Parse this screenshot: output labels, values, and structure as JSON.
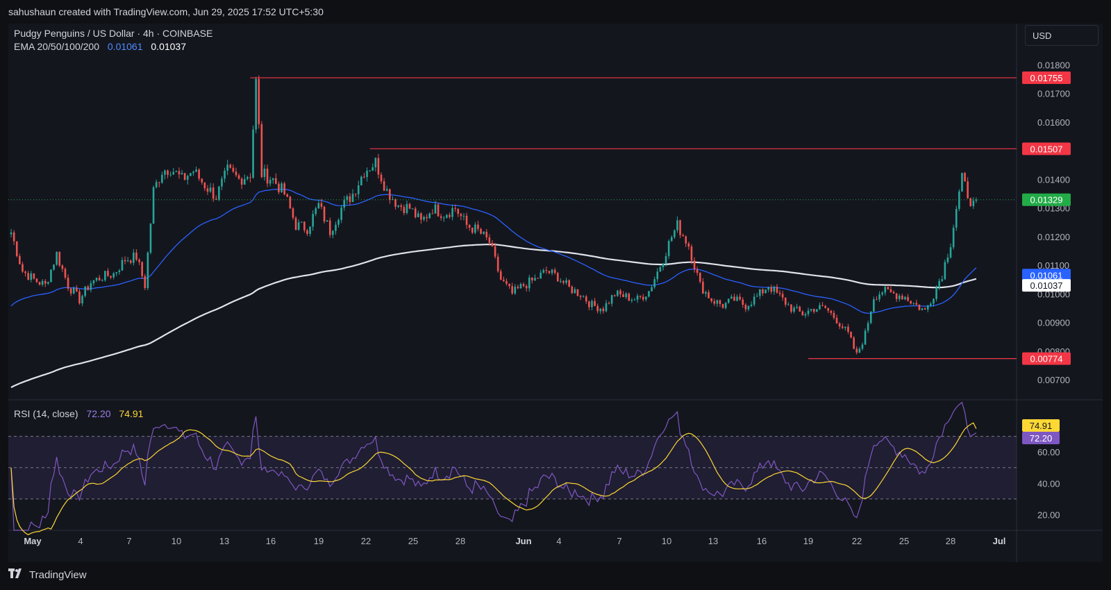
{
  "header": {
    "text": "sahushaun created with TradingView.com, Jun 29, 2025 17:52 UTC+5:30"
  },
  "legend": {
    "title": "Pudgy Penguins / US Dollar · 4h · COINBASE",
    "ema_label": "EMA 20/50/100/200",
    "ema_value_1": "0.01061",
    "ema_value_2": "0.01037",
    "rsi_label": "RSI (14, close)",
    "rsi_value": "72.20",
    "rsi_ma_value": "74.91"
  },
  "currency_button": "USD",
  "footer": {
    "brand": "TradingView"
  },
  "colors": {
    "up": "#26a69a",
    "down": "#ef5350",
    "ema_blue": "#2962ff",
    "ema_white": "#e0e3eb",
    "rsi": "#7e57c2",
    "rsi_ma": "#fdd835",
    "level": "#f23645",
    "last": "#22ab47"
  },
  "chart_data": {
    "type": "candlestick",
    "price_axis": {
      "range": [
        0.0063,
        0.0192
      ],
      "ticks": [
        "0.00700",
        "0.00800",
        "0.00900",
        "0.01000",
        "0.01100",
        "0.01200",
        "0.01300",
        "0.01400",
        "0.01500",
        "0.01600",
        "0.01700",
        "0.01800"
      ]
    },
    "x_ticks": [
      "May",
      "4",
      "7",
      "10",
      "13",
      "16",
      "19",
      "22",
      "25",
      "28",
      "Jun",
      "4",
      "7",
      "10",
      "13",
      "16",
      "19",
      "22",
      "25",
      "28",
      "Jul"
    ],
    "levels": [
      {
        "value": 0.01755,
        "label": "0.01755"
      },
      {
        "value": 0.01507,
        "label": "0.01507"
      },
      {
        "value": 0.00774,
        "label": "0.00774"
      }
    ],
    "last_price": {
      "value": 0.01329,
      "label": "0.01329"
    },
    "ema_labels": [
      {
        "value": 0.01061,
        "label": "0.01061"
      },
      {
        "value": 0.01037,
        "label": "0.01037"
      }
    ],
    "price_path": [
      [
        0,
        0.01215
      ],
      [
        4,
        0.0108
      ],
      [
        8,
        0.0105
      ],
      [
        12,
        0.0103
      ],
      [
        16,
        0.0114
      ],
      [
        20,
        0.0103
      ],
      [
        24,
        0.0098
      ],
      [
        28,
        0.0104
      ],
      [
        32,
        0.0106
      ],
      [
        36,
        0.0107
      ],
      [
        40,
        0.0112
      ],
      [
        44,
        0.0113
      ],
      [
        47,
        0.0103
      ],
      [
        50,
        0.0136
      ],
      [
        53,
        0.0143
      ],
      [
        56,
        0.0144
      ],
      [
        60,
        0.014
      ],
      [
        64,
        0.0143
      ],
      [
        68,
        0.0138
      ],
      [
        72,
        0.0134
      ],
      [
        76,
        0.0143
      ],
      [
        80,
        0.014
      ],
      [
        84,
        0.0142
      ],
      [
        86,
        0.0174
      ],
      [
        88,
        0.0142
      ],
      [
        92,
        0.014
      ],
      [
        96,
        0.0135
      ],
      [
        100,
        0.0124
      ],
      [
        104,
        0.0123
      ],
      [
        108,
        0.0131
      ],
      [
        112,
        0.0122
      ],
      [
        116,
        0.013
      ],
      [
        120,
        0.0135
      ],
      [
        124,
        0.0143
      ],
      [
        128,
        0.0146
      ],
      [
        132,
        0.0136
      ],
      [
        136,
        0.0131
      ],
      [
        140,
        0.013
      ],
      [
        144,
        0.0125
      ],
      [
        148,
        0.013
      ],
      [
        152,
        0.0128
      ],
      [
        156,
        0.013
      ],
      [
        160,
        0.0124
      ],
      [
        164,
        0.0122
      ],
      [
        168,
        0.0118
      ],
      [
        172,
        0.0105
      ],
      [
        176,
        0.01
      ],
      [
        180,
        0.0103
      ],
      [
        184,
        0.0105
      ],
      [
        188,
        0.0108
      ],
      [
        192,
        0.0106
      ],
      [
        196,
        0.0102
      ],
      [
        200,
        0.01
      ],
      [
        204,
        0.0096
      ],
      [
        208,
        0.0095
      ],
      [
        212,
        0.01
      ],
      [
        216,
        0.0099
      ],
      [
        220,
        0.0098
      ],
      [
        224,
        0.0101
      ],
      [
        228,
        0.011
      ],
      [
        232,
        0.012
      ],
      [
        234,
        0.0124
      ],
      [
        238,
        0.0117
      ],
      [
        242,
        0.0103
      ],
      [
        246,
        0.0098
      ],
      [
        250,
        0.0096
      ],
      [
        254,
        0.0098
      ],
      [
        258,
        0.0096
      ],
      [
        262,
        0.0099
      ],
      [
        266,
        0.0103
      ],
      [
        270,
        0.0099
      ],
      [
        274,
        0.0095
      ],
      [
        278,
        0.0093
      ],
      [
        282,
        0.0095
      ],
      [
        286,
        0.0095
      ],
      [
        290,
        0.0091
      ],
      [
        294,
        0.0086
      ],
      [
        297,
        0.00785
      ],
      [
        300,
        0.0086
      ],
      [
        303,
        0.0099
      ],
      [
        306,
        0.0101
      ],
      [
        310,
        0.01
      ],
      [
        314,
        0.0099
      ],
      [
        318,
        0.0096
      ],
      [
        321,
        0.0094
      ],
      [
        324,
        0.01
      ],
      [
        327,
        0.0107
      ],
      [
        330,
        0.0118
      ],
      [
        332,
        0.013
      ],
      [
        334,
        0.014
      ],
      [
        336,
        0.0135
      ],
      [
        338,
        0.0131
      ],
      [
        339,
        0.01329
      ]
    ],
    "rsi": {
      "range": [
        10,
        92
      ],
      "levels": [
        70,
        50,
        30
      ],
      "ticks": [
        "20.00",
        "40.00",
        "60.00"
      ],
      "tags": [
        {
          "label": "74.91",
          "kind": "ma"
        },
        {
          "label": "72.20",
          "kind": "rsi"
        }
      ],
      "rsi_last": 72.2,
      "ma_last": 74.91
    }
  }
}
